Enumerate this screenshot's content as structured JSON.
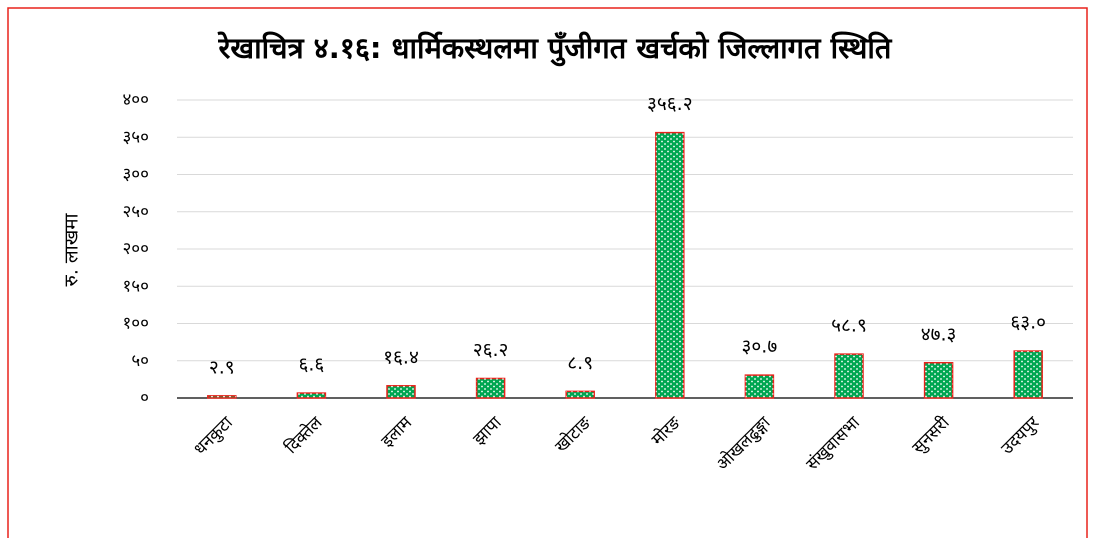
{
  "chart_data": {
    "type": "bar",
    "title": "रेखाचित्र ४.१६: धार्मिकस्थलमा पुँजीगत खर्चको जिल्लागत स्थिति",
    "y_label": "रु. लाखमा",
    "categories": [
      "धनकुटा",
      "दिक्तेल",
      "इलाम",
      "झापा",
      "खोटाङ",
      "मोरङ",
      "ओखलढुङ्गा",
      "संखुवासभा",
      "सुनसरी",
      "उदयपुर"
    ],
    "values": [
      2.9,
      6.6,
      16.4,
      26.2,
      8.9,
      356.2,
      30.7,
      58.9,
      47.3,
      63.0
    ],
    "value_labels": [
      "२.९",
      "६.६",
      "१६.४",
      "२६.२",
      "८.९",
      "३५६.२",
      "३०.७",
      "५८.९",
      "४७.३",
      "६३.०"
    ],
    "color": "#00a651",
    "edge_color": "#e8221b",
    "ylim": [
      0,
      400
    ],
    "yticks": [
      {
        "value": 0,
        "label": "०"
      },
      {
        "value": 50,
        "label": "५०"
      },
      {
        "value": 100,
        "label": "१००"
      },
      {
        "value": 150,
        "label": "१५०"
      },
      {
        "value": 200,
        "label": "२००"
      },
      {
        "value": 250,
        "label": "२५०"
      },
      {
        "value": 300,
        "label": "३००"
      },
      {
        "value": 350,
        "label": "३५०"
      },
      {
        "value": 400,
        "label": "४००"
      }
    ],
    "grid": true
  }
}
